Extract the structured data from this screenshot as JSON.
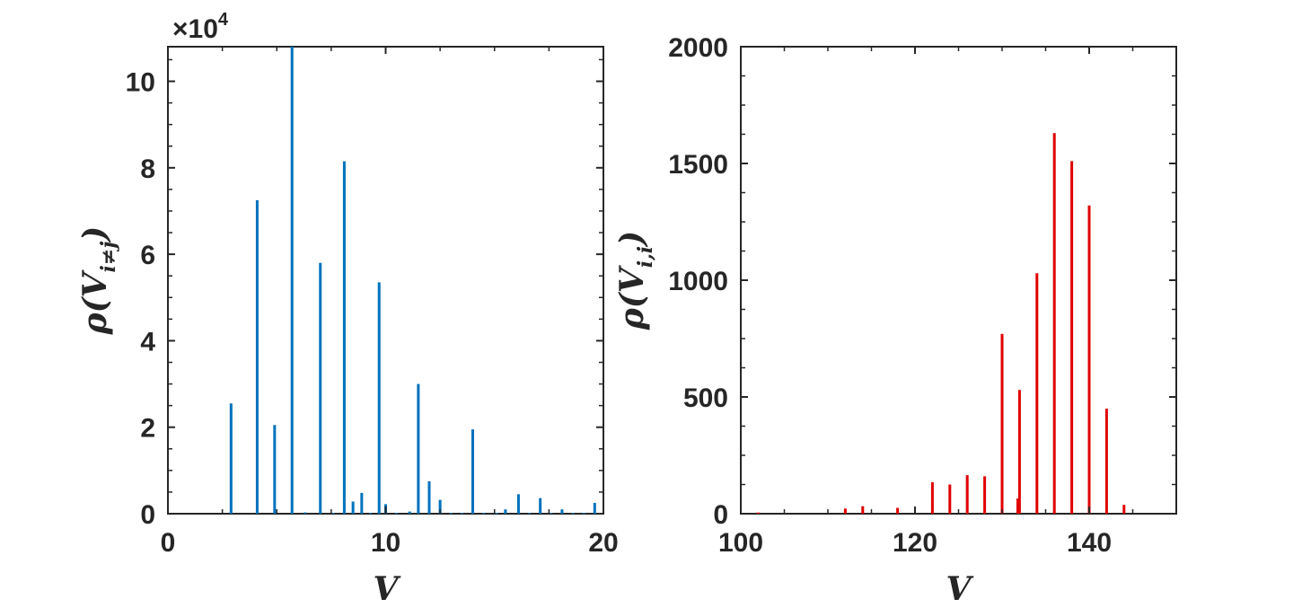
{
  "chart_data": [
    {
      "type": "bar",
      "color": "#0072BD",
      "xlabel": "V",
      "ylabel_main": "ρ(V",
      "ylabel_sub": "i≠j",
      "ylabel_close": ")",
      "xlim": [
        0,
        20
      ],
      "ylim": [
        0,
        10.8
      ],
      "exponent_label": "×10",
      "exponent_power": "4",
      "xticks": [
        0,
        10,
        20
      ],
      "yticks": [
        0,
        2,
        4,
        6,
        8,
        10
      ],
      "x": [
        2.9,
        4.1,
        4.9,
        5.7,
        6.3,
        7.0,
        7.6,
        8.1,
        8.5,
        8.9,
        9.3,
        9.7,
        10.0,
        10.5,
        11.1,
        11.5,
        12.0,
        12.5,
        13.0,
        13.5,
        14.0,
        14.5,
        15.1,
        15.5,
        16.1,
        16.6,
        17.1,
        17.6,
        18.1,
        18.6,
        19.1,
        19.6
      ],
      "values": [
        2.55,
        7.25,
        2.05,
        10.8,
        0.03,
        5.8,
        0.02,
        8.15,
        0.28,
        0.48,
        0.02,
        5.35,
        0.22,
        0.02,
        0.05,
        3.0,
        0.75,
        0.32,
        0.02,
        0.02,
        1.95,
        0.02,
        0.02,
        0.1,
        0.45,
        0.02,
        0.36,
        0.02,
        0.1,
        0.02,
        0.02,
        0.25
      ]
    },
    {
      "type": "bar",
      "color": "#E00000",
      "xlabel": "V",
      "ylabel_main": "ρ(V",
      "ylabel_sub": "i,i",
      "ylabel_close": ")",
      "xlim": [
        100,
        150
      ],
      "ylim": [
        0,
        2000
      ],
      "xticks": [
        100,
        120,
        140
      ],
      "yticks": [
        0,
        500,
        1000,
        1500,
        2000
      ],
      "x": [
        102,
        112,
        114,
        118,
        122,
        124,
        126,
        128,
        130,
        131.8,
        132,
        134,
        136,
        138,
        140,
        142,
        144
      ],
      "values": [
        5,
        22,
        32,
        25,
        135,
        125,
        165,
        160,
        770,
        65,
        530,
        1030,
        1630,
        1510,
        1320,
        450,
        38
      ]
    }
  ]
}
